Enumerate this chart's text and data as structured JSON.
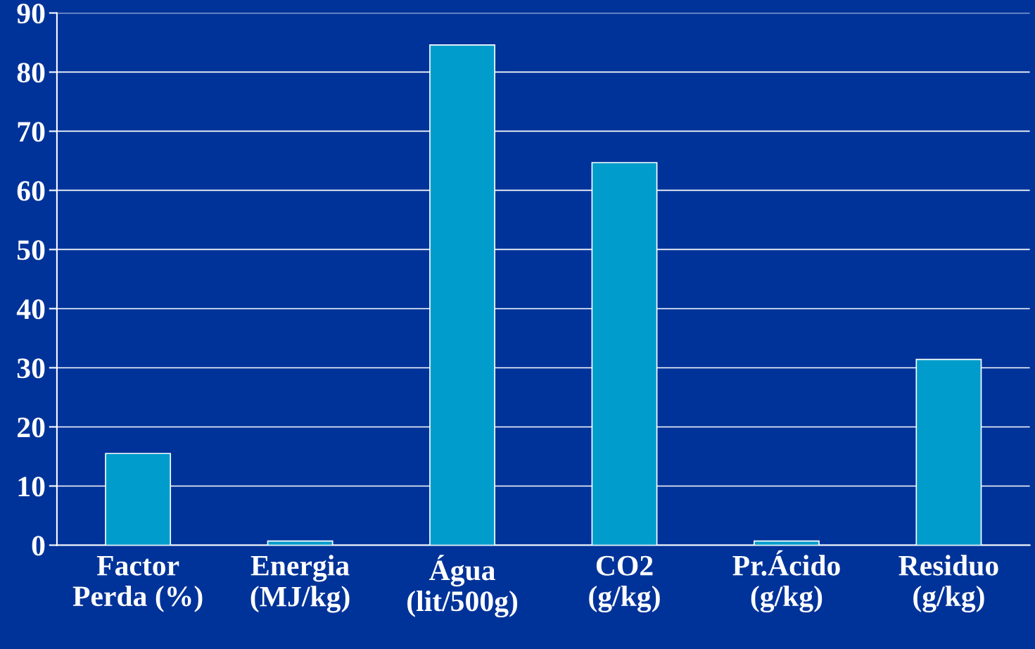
{
  "chart_data": {
    "type": "bar",
    "categories": [
      "Factor\nPerda (%)",
      "Energia\n(MJ/kg)",
      "Água\n(lit/500g)",
      "CO2\n(g/kg)",
      "Pr.Ácido\n(g/kg)",
      "Residuo\n(g/kg)"
    ],
    "values": [
      15.5,
      0.7,
      84.6,
      64.7,
      0.7,
      31.4
    ],
    "color": "#009ccc",
    "ylim": [
      0,
      90
    ],
    "yticks": [
      0,
      10,
      20,
      30,
      40,
      50,
      60,
      70,
      80,
      90
    ],
    "grid": "y"
  }
}
